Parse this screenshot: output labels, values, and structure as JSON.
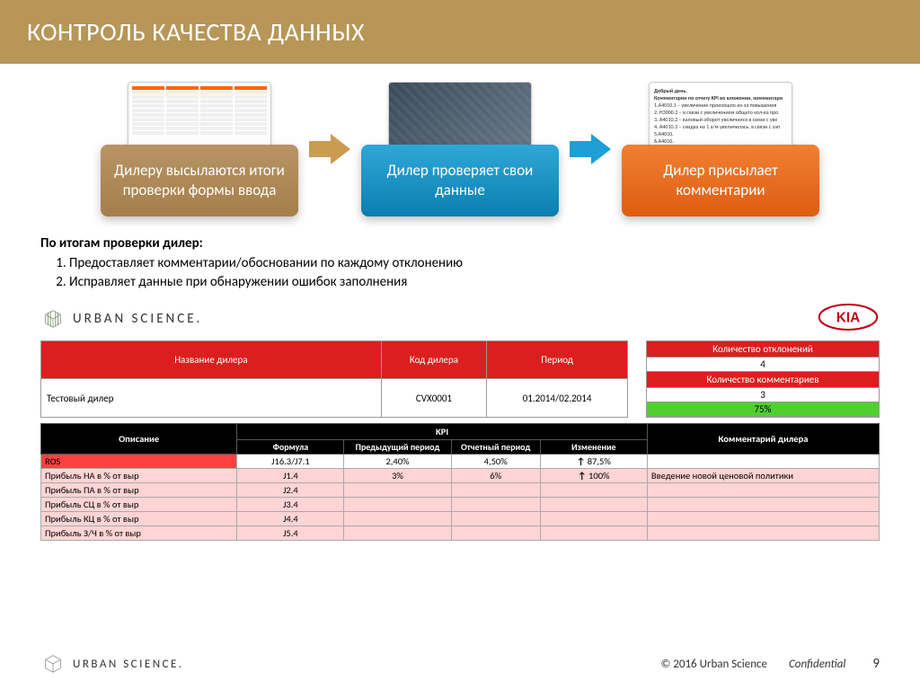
{
  "title": "КОНТРОЛЬ КАЧЕСТВА ДАННЫХ",
  "flow": {
    "step1": "Дилеру высылаются итоги проверки формы ввода",
    "step2": "Дилер проверяет свои данные",
    "step3": "Дилер присылает комментарии",
    "thumb3_title": "Добрый день.",
    "thumb3_sub": "Комментарии по отчету KPI во вложении, комментари",
    "thumb3_lines": [
      "1.A4010.1 – увеличение произошло из-за повышения",
      "2. H3000.2 – в связи с увеличением общего кол-ва про",
      "3. A4010.2 – валовый оборот увеличился в связи с уве",
      "4. A4010.3 – скидка на 1 а/м увеличилась, в связи с зап",
      "5.A4010.",
      "6.A4010.",
      "7.A4010.",
      "8.A4260.",
      "9.A4328."
    ]
  },
  "summary": {
    "lead": "По итогам проверки дилер:",
    "item1": "Предоставляет комментарии/обосновании по каждому отклонению",
    "item2": "Исправляет данные при обнаружении ошибок заполнения"
  },
  "brand": {
    "urban": "URBAN SCIENCE."
  },
  "dealer_table": {
    "h1": "Название дилера",
    "h2": "Код дилера",
    "h3": "Период",
    "name": "Тестовый дилер",
    "code": "CVX0001",
    "period": "01.2014/02.2014"
  },
  "dev_box": {
    "h1": "Количество отклонений",
    "v1": "4",
    "h2": "Количество комментариев",
    "v2": "3",
    "pct": "75%"
  },
  "kpi": {
    "group": "KPI",
    "h_desc": "Описание",
    "h_formula": "Формула",
    "h_prev": "Предыдущий период",
    "h_curr": "Отчетный период",
    "h_change": "Изменение",
    "h_comment": "Комментарий дилера",
    "rows": [
      {
        "desc": "ROS",
        "formula": "J16.3/J7.1",
        "prev": "2,40%",
        "curr": "4,50%",
        "chg": "87,5%",
        "comment": "",
        "cls": "red"
      },
      {
        "desc": "Прибыль НА в % от выр",
        "formula": "J1.4",
        "prev": "3%",
        "curr": "6%",
        "chg": "100%",
        "comment": "Введение новой ценовой политики",
        "cls": "pink"
      },
      {
        "desc": "Прибыль ПА в % от выр",
        "formula": "J2.4",
        "prev": "",
        "curr": "",
        "chg": "",
        "comment": "",
        "cls": "pink"
      },
      {
        "desc": "Прибыль СЦ в % от выр",
        "formula": "J3.4",
        "prev": "",
        "curr": "",
        "chg": "",
        "comment": "",
        "cls": "pink"
      },
      {
        "desc": "Прибыль КЦ в % от выр",
        "formula": "J4.4",
        "prev": "",
        "curr": "",
        "chg": "",
        "comment": "",
        "cls": "pink"
      },
      {
        "desc": "Прибыль З/Ч в % от выр",
        "formula": "J5.4",
        "prev": "",
        "curr": "",
        "chg": "",
        "comment": "",
        "cls": "pink"
      }
    ]
  },
  "footer": {
    "copy": "© 2016 Urban Science",
    "conf": "Confidential",
    "page": "9"
  }
}
